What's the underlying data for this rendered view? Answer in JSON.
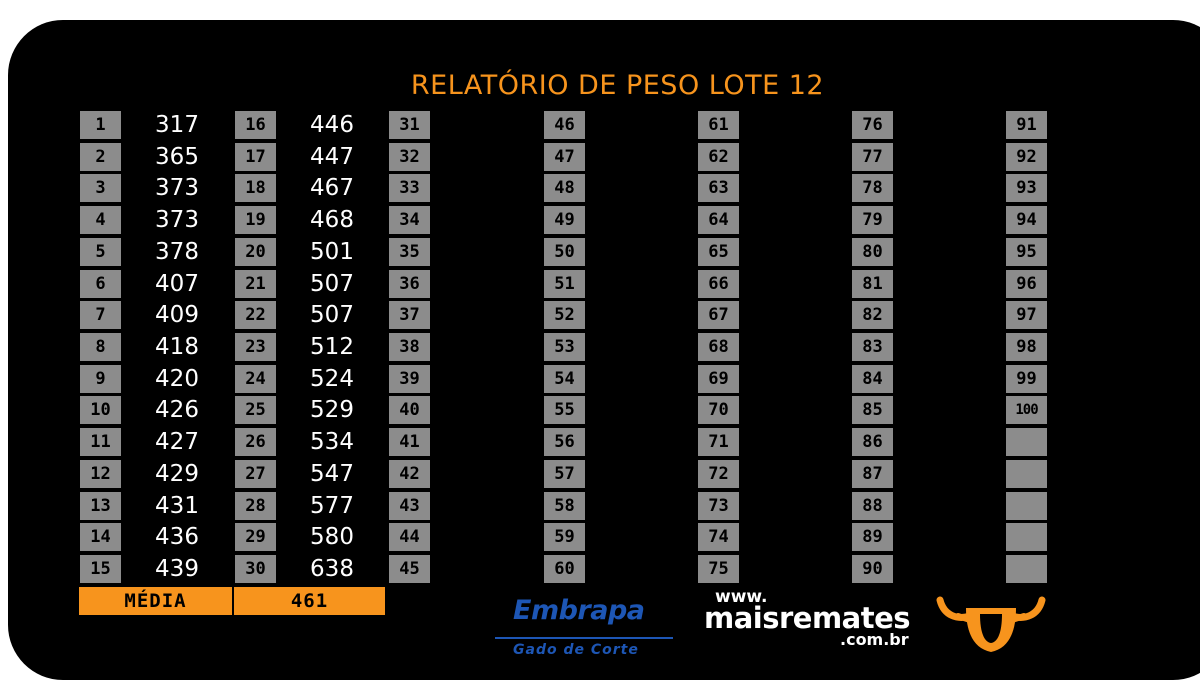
{
  "title": "RELATÓRIO DE PESO LOTE 12",
  "columns": [
    {
      "numbers": [
        "1",
        "2",
        "3",
        "4",
        "5",
        "6",
        "7",
        "8",
        "9",
        "10",
        "11",
        "12",
        "13",
        "14",
        "15"
      ],
      "weights": [
        "317",
        "365",
        "373",
        "373",
        "378",
        "407",
        "409",
        "418",
        "420",
        "426",
        "427",
        "429",
        "431",
        "436",
        "439"
      ]
    },
    {
      "numbers": [
        "16",
        "17",
        "18",
        "19",
        "20",
        "21",
        "22",
        "23",
        "24",
        "25",
        "26",
        "27",
        "28",
        "29",
        "30"
      ],
      "weights": [
        "446",
        "447",
        "467",
        "468",
        "501",
        "507",
        "507",
        "512",
        "524",
        "529",
        "534",
        "547",
        "577",
        "580",
        "638"
      ]
    },
    {
      "numbers": [
        "31",
        "32",
        "33",
        "34",
        "35",
        "36",
        "37",
        "38",
        "39",
        "40",
        "41",
        "42",
        "43",
        "44",
        "45"
      ],
      "weights": []
    },
    {
      "numbers": [
        "46",
        "47",
        "48",
        "49",
        "50",
        "51",
        "52",
        "53",
        "54",
        "55",
        "56",
        "57",
        "58",
        "59",
        "60"
      ],
      "weights": []
    },
    {
      "numbers": [
        "61",
        "62",
        "63",
        "64",
        "65",
        "66",
        "67",
        "68",
        "69",
        "70",
        "71",
        "72",
        "73",
        "74",
        "75"
      ],
      "weights": []
    },
    {
      "numbers": [
        "76",
        "77",
        "78",
        "79",
        "80",
        "81",
        "82",
        "83",
        "84",
        "85",
        "86",
        "87",
        "88",
        "89",
        "90"
      ],
      "weights": []
    },
    {
      "numbers": [
        "91",
        "92",
        "93",
        "94",
        "95",
        "96",
        "97",
        "98",
        "99",
        "100",
        "",
        "",
        "",
        "",
        ""
      ],
      "weights": []
    }
  ],
  "summary": {
    "label": "MÉDIA",
    "value": "461"
  },
  "logos": {
    "embrapa": {
      "name": "Embrapa",
      "subtitle": "Gado de Corte",
      "color": "#1d56b5"
    },
    "maisremates": {
      "www": "www.",
      "name": "maisremates",
      "domain": ".com.br"
    },
    "bull_icon": "bull-head-icon"
  },
  "colors": {
    "accent": "#f7941d",
    "cell": "#8c8c8c",
    "background": "#000000"
  }
}
